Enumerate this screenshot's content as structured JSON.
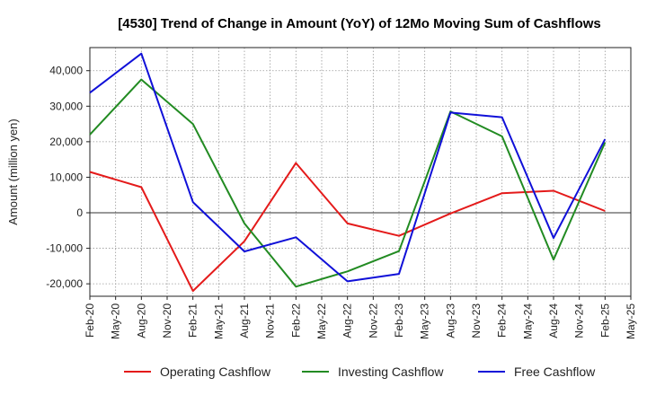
{
  "chart_data": {
    "type": "line",
    "title": "[4530]  Trend of Change in Amount (YoY) of 12Mo Moving Sum of Cashflows",
    "xlabel": "",
    "ylabel": "Amount (million yen)",
    "ylim": [
      -23500,
      46500
    ],
    "yticks": [
      -20000,
      -10000,
      0,
      10000,
      20000,
      30000,
      40000
    ],
    "ytick_labels": [
      "-20,000",
      "-10,000",
      "0",
      "10,000",
      "20,000",
      "30,000",
      "40,000"
    ],
    "categories": [
      "Feb-20",
      "May-20",
      "Aug-20",
      "Nov-20",
      "Feb-21",
      "May-21",
      "Aug-21",
      "Nov-21",
      "Feb-22",
      "May-22",
      "Aug-22",
      "Nov-22",
      "Feb-23",
      "May-23",
      "Aug-23",
      "Nov-23",
      "Feb-24",
      "May-24",
      "Aug-24",
      "Nov-24",
      "Feb-25",
      "May-25"
    ],
    "grid": true,
    "legend_position": "bottom",
    "series": [
      {
        "name": "Operating Cashflow",
        "color": "#e41a1a",
        "x": [
          "Feb-20",
          "Aug-20",
          "Feb-21",
          "Aug-21",
          "Feb-22",
          "Aug-22",
          "Feb-23",
          "Aug-23",
          "Feb-24",
          "Aug-24",
          "Feb-25"
        ],
        "values": [
          11500,
          7200,
          -22000,
          -8000,
          14000,
          -3000,
          -6500,
          -200,
          5500,
          6200,
          500
        ]
      },
      {
        "name": "Investing Cashflow",
        "color": "#228b22",
        "x": [
          "Feb-20",
          "Aug-20",
          "Feb-21",
          "Aug-21",
          "Feb-22",
          "Aug-22",
          "Feb-23",
          "Aug-23",
          "Feb-24",
          "Aug-24",
          "Feb-25"
        ],
        "values": [
          22000,
          37500,
          25000,
          -3000,
          -20800,
          -16500,
          -10800,
          28500,
          21500,
          -13200,
          19800
        ]
      },
      {
        "name": "Free Cashflow",
        "color": "#1010d8",
        "x": [
          "Feb-20",
          "Aug-20",
          "Feb-21",
          "Aug-21",
          "Feb-22",
          "Aug-22",
          "Feb-23",
          "Aug-23",
          "Feb-24",
          "Aug-24",
          "Feb-25"
        ],
        "values": [
          33800,
          44800,
          3000,
          -10900,
          -6900,
          -19300,
          -17200,
          28200,
          26900,
          -7100,
          20700
        ]
      }
    ]
  }
}
